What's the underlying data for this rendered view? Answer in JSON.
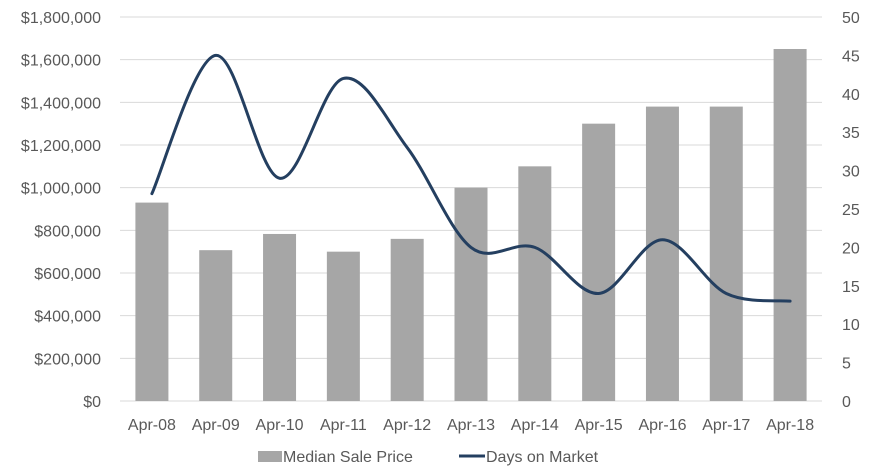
{
  "chart_data": {
    "type": "bar",
    "categories": [
      "Apr-08",
      "Apr-09",
      "Apr-10",
      "Apr-11",
      "Apr-12",
      "Apr-13",
      "Apr-14",
      "Apr-15",
      "Apr-16",
      "Apr-17",
      "Apr-18"
    ],
    "series": [
      {
        "name": "Median Sale Price",
        "type": "bar",
        "axis": "left",
        "color": "#a6a6a6",
        "values": [
          930000,
          707000,
          783000,
          700000,
          760000,
          1000000,
          1100000,
          1300000,
          1380000,
          1380000,
          1650000
        ]
      },
      {
        "name": "Days on Market",
        "type": "line",
        "axis": "right",
        "color": "#243f60",
        "smooth": true,
        "values": [
          27,
          45,
          29,
          42,
          33,
          20,
          20,
          14,
          21,
          14,
          13
        ]
      }
    ],
    "y_left": {
      "range": [
        0,
        1800000
      ],
      "ticks": [
        "$0",
        "$200,000",
        "$400,000",
        "$600,000",
        "$800,000",
        "$1,000,000",
        "$1,200,000",
        "$1,400,000",
        "$1,600,000",
        "$1,800,000"
      ]
    },
    "y_right": {
      "range": [
        0,
        50
      ],
      "ticks": [
        "0",
        "5",
        "10",
        "15",
        "20",
        "25",
        "30",
        "35",
        "40",
        "45",
        "50"
      ]
    },
    "grid": true,
    "legend_position": "bottom",
    "title": "",
    "xlabel": "",
    "ylabel": ""
  }
}
